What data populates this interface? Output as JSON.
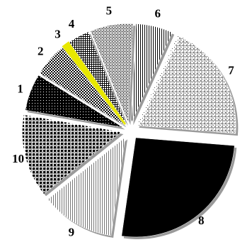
{
  "chart_data": {
    "type": "pie",
    "exploded": true,
    "legend": "none",
    "title": "",
    "categories": [
      "1",
      "2",
      "3",
      "4",
      "5",
      "6",
      "7",
      "8",
      "9",
      "10"
    ],
    "values": [
      6.0,
      5.5,
      1.0,
      3.5,
      7.0,
      6.0,
      19.5,
      26.0,
      12.0,
      13.5
    ],
    "fills": [
      {
        "pattern": "dark-dots",
        "base": "#000000",
        "mark": "#ffffff"
      },
      {
        "pattern": "checker",
        "base": "#ffffff",
        "mark": "#000000"
      },
      {
        "pattern": "solid",
        "base": "#e8e800",
        "mark": "#e8e800"
      },
      {
        "pattern": "fine-grid",
        "base": "#ffffff",
        "mark": "#000000"
      },
      {
        "pattern": "mesh",
        "base": "#cfcfcf",
        "mark": "#000000"
      },
      {
        "pattern": "vertical-lines",
        "base": "#ffffff",
        "mark": "#000000"
      },
      {
        "pattern": "light-dots",
        "base": "#ffffff",
        "mark": "#555555"
      },
      {
        "pattern": "solid",
        "base": "#000000",
        "mark": "#000000"
      },
      {
        "pattern": "vertical-lines",
        "base": "#ffffff",
        "mark": "#777777"
      },
      {
        "pattern": "heavy-dots",
        "base": "#ffffff",
        "mark": "#000000"
      }
    ],
    "highlight_color": "#e8e800",
    "shadow_color": "#9a9a9a"
  }
}
